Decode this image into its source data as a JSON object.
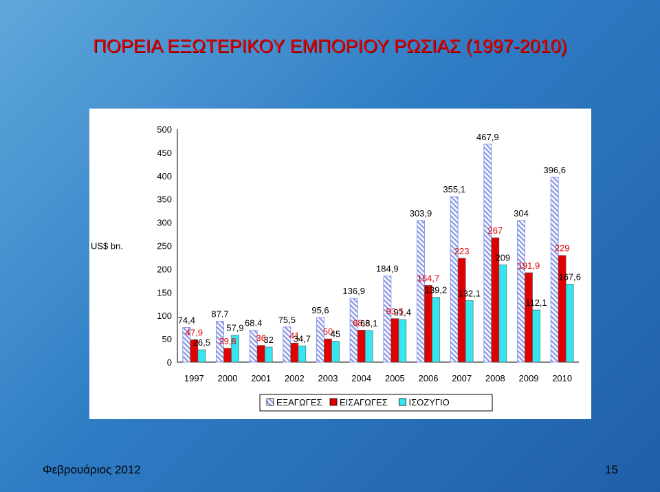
{
  "slide": {
    "title": "ΠΟΡΕΙΑ ΕΞΩΤΕΡΙΚΟΥ ΕΜΠΟΡΙΟΥ ΡΩΣΙΑΣ (1997-2010)",
    "footer_date": "Φεβρουάριος 2012",
    "page_number": "15"
  },
  "chart_data": {
    "type": "bar",
    "title": "",
    "ylabel": "US$ bn.",
    "xlabel": "",
    "ylim": [
      0,
      500
    ],
    "yticks": [
      "0",
      "50",
      "100",
      "150",
      "200",
      "250",
      "300",
      "350",
      "400",
      "450",
      "500"
    ],
    "categories": [
      "1997",
      "2000",
      "2001",
      "2002",
      "2003",
      "2004",
      "2005",
      "2006",
      "2007",
      "2008",
      "2009",
      "2010"
    ],
    "legend_position": "bottom",
    "grid": false,
    "series": [
      {
        "name": "ΕΞΑΓΩΓΕΣ",
        "color": "#a8b4ee",
        "pattern": "diagonal-hatch",
        "values": [
          74.4,
          87.7,
          68.4,
          75.5,
          95.6,
          136.9,
          184.9,
          303.9,
          355.1,
          467.9,
          304,
          396.6
        ],
        "labels": [
          "74,4",
          "87.7",
          "68.4",
          "75,5",
          "95,6",
          "136,9",
          "184,9",
          "303,9",
          "355,1",
          "467,9",
          "304",
          "396,6"
        ]
      },
      {
        "name": "ΕΙΣΑΓΩΓΕΣ",
        "color": "#e00000",
        "values": [
          47.9,
          29.8,
          36,
          41,
          50,
          68.8,
          93.5,
          164.7,
          223,
          267,
          191.9,
          229
        ],
        "labels": [
          "47,9",
          "29,8",
          "36",
          "41",
          "50",
          "68,8",
          "93,5",
          "164,7",
          "223",
          "267",
          "191,9",
          "229"
        ]
      },
      {
        "name": "ΙΣΟΖΥΓΙΟ",
        "color": "#33e6f0",
        "values": [
          26.5,
          57.9,
          32.4,
          34.7,
          45,
          68.1,
          91.4,
          139.2,
          132.1,
          209,
          112.1,
          167.6
        ],
        "labels": [
          "26,5",
          "57,9",
          "32",
          "34,7",
          "45",
          "68,1",
          "91,4",
          "139,2",
          "132,1",
          "209",
          "112,1",
          "167,6"
        ]
      }
    ]
  }
}
